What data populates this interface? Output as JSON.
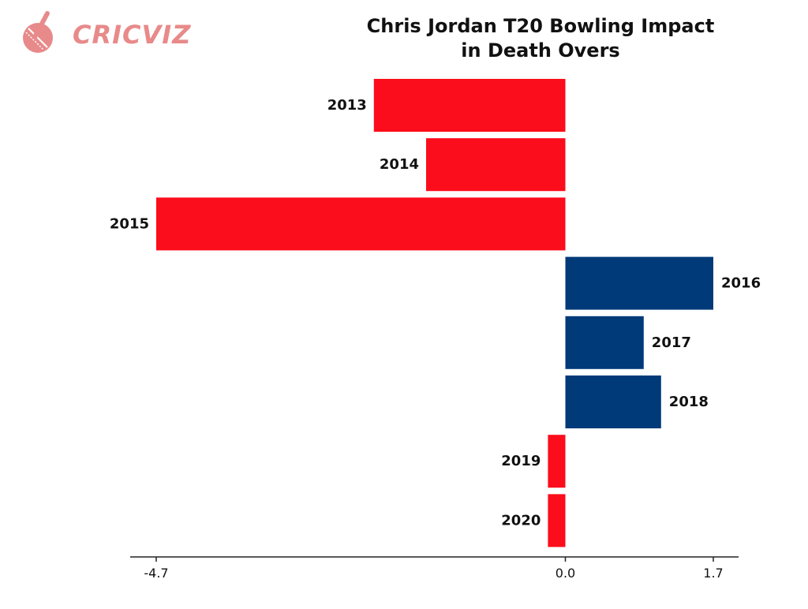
{
  "brand": {
    "logo_text": "CRICVIZ"
  },
  "chart_data": {
    "type": "bar",
    "orientation": "horizontal",
    "title": "Chris Jordan T20 Bowling Impact in Death Overs",
    "title_lines": [
      "Chris Jordan T20 Bowling Impact",
      "in Death Overs"
    ],
    "categories": [
      "2013",
      "2014",
      "2015",
      "2016",
      "2017",
      "2018",
      "2019",
      "2020"
    ],
    "values": [
      -2.2,
      -1.6,
      -4.7,
      1.7,
      0.9,
      1.1,
      -0.2,
      -0.2
    ],
    "xlim": [
      -4.7,
      1.7
    ],
    "xticks": [
      -4.7,
      0.0,
      1.7
    ],
    "xtick_labels": [
      "-4.7",
      "0.0",
      "1.7"
    ],
    "xlabel": "",
    "ylabel": "",
    "grid": false,
    "legend": "none",
    "colors": {
      "negative": "#fc0d1b",
      "positive": "#003a79"
    }
  }
}
